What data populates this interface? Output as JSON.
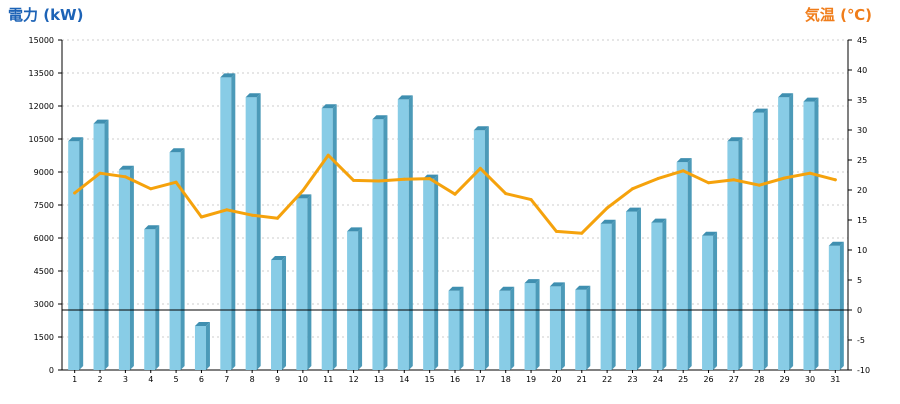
{
  "chart_data": {
    "type": "bar",
    "left_axis_title": "電力 (kW)",
    "right_axis_title": "気温 (℃)",
    "categories": [
      "1",
      "2",
      "3",
      "4",
      "5",
      "6",
      "7",
      "8",
      "9",
      "10",
      "11",
      "12",
      "13",
      "14",
      "15",
      "16",
      "17",
      "18",
      "19",
      "20",
      "21",
      "22",
      "23",
      "24",
      "25",
      "26",
      "27",
      "28",
      "29",
      "30",
      "31"
    ],
    "y_left": {
      "min": 0,
      "max": 15000,
      "ticks": [
        0,
        1500,
        3000,
        4500,
        6000,
        7500,
        9000,
        10500,
        12000,
        13500,
        15000
      ]
    },
    "y_right": {
      "min": -10,
      "max": 45,
      "ticks": [
        -10,
        -5,
        0,
        5,
        10,
        15,
        20,
        25,
        30,
        35,
        40,
        45
      ]
    },
    "grid": true,
    "series": [
      {
        "kind": "bar",
        "axis": "left",
        "values": [
          10400,
          11200,
          9100,
          6400,
          9900,
          2000,
          13300,
          12400,
          5000,
          7800,
          11900,
          6300,
          11400,
          12300,
          8700,
          3600,
          10900,
          3600,
          3950,
          3800,
          3650,
          6650,
          7200,
          6700,
          9450,
          6100,
          10400,
          11700,
          12400,
          12200,
          5650
        ]
      },
      {
        "kind": "line",
        "axis": "right",
        "values": [
          19.5,
          22.8,
          22.2,
          20.2,
          21.3,
          15.5,
          16.7,
          15.8,
          15.3,
          19.9,
          25.8,
          21.6,
          21.5,
          21.8,
          21.9,
          19.3,
          23.6,
          19.4,
          18.4,
          13.1,
          12.8,
          17.0,
          20.2,
          21.9,
          23.2,
          21.2,
          21.7,
          20.8,
          22.0,
          22.8,
          21.7
        ]
      }
    ],
    "colors": {
      "bar_front": "#88cce6",
      "bar_side": "#4c9ab8",
      "bar_top": "#3f8fb0",
      "line": "#f5a20c",
      "left_title": "#1d63b6",
      "right_title": "#f07d1a",
      "grid": "#cccccc",
      "zero_line": "#000000"
    }
  }
}
